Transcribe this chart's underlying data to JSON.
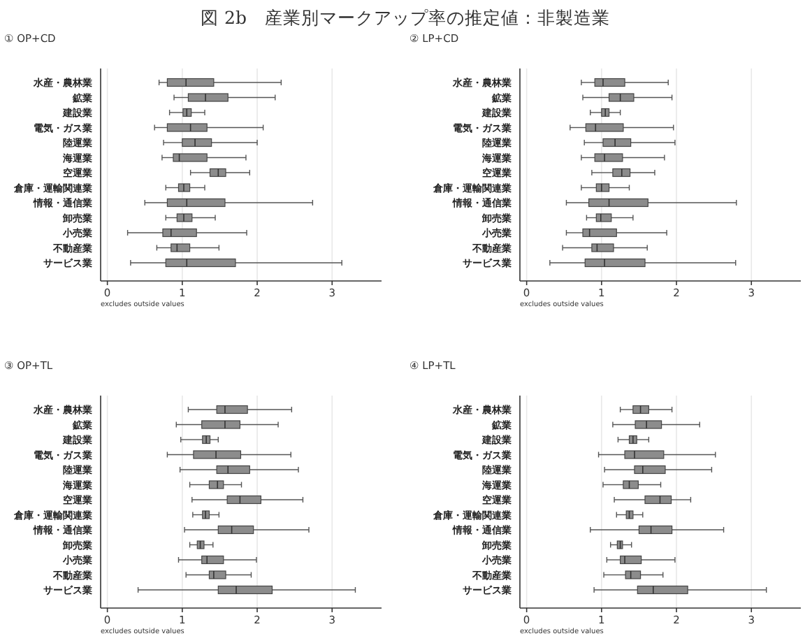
{
  "chart_data": [
    {
      "type": "box",
      "orientation": "horizontal",
      "title": "図 2b　産業別マークアップ率の推定値：非製造業",
      "subtitle": "① OP+CD",
      "categories": [
        "水産・農林業",
        "鉱業",
        "建設業",
        "電気・ガス業",
        "陸運業",
        "海運業",
        "空運業",
        "倉庫・運輸関連業",
        "情報・通信業",
        "卸売業",
        "小売業",
        "不動産業",
        "サービス業"
      ],
      "xlim": [
        -0.09,
        3.66
      ],
      "xticks": [
        0,
        1,
        2,
        3
      ],
      "grid": "x",
      "annotations": [
        "excludes outside values"
      ],
      "series": [
        {
          "color": "#8c8c8c",
          "boxes": [
            {
              "low": 0.69,
              "q1": 0.8,
              "median": 1.05,
              "q3": 1.42,
              "high": 2.32
            },
            {
              "low": 0.89,
              "q1": 1.08,
              "median": 1.31,
              "q3": 1.61,
              "high": 2.24
            },
            {
              "low": 0.83,
              "q1": 1.01,
              "median": 1.06,
              "q3": 1.12,
              "high": 1.3
            },
            {
              "low": 0.63,
              "q1": 0.8,
              "median": 1.11,
              "q3": 1.33,
              "high": 2.08
            },
            {
              "low": 0.75,
              "q1": 1.0,
              "median": 1.17,
              "q3": 1.39,
              "high": 2.0
            },
            {
              "low": 0.73,
              "q1": 0.88,
              "median": 0.96,
              "q3": 1.33,
              "high": 1.85
            },
            {
              "low": 1.11,
              "q1": 1.37,
              "median": 1.48,
              "q3": 1.58,
              "high": 1.9
            },
            {
              "low": 0.78,
              "q1": 0.95,
              "median": 1.02,
              "q3": 1.1,
              "high": 1.3
            },
            {
              "low": 0.5,
              "q1": 0.8,
              "median": 1.06,
              "q3": 1.57,
              "high": 2.74
            },
            {
              "low": 0.78,
              "q1": 0.93,
              "median": 1.02,
              "q3": 1.13,
              "high": 1.44
            },
            {
              "low": 0.27,
              "q1": 0.74,
              "median": 0.85,
              "q3": 1.19,
              "high": 1.86
            },
            {
              "low": 0.66,
              "q1": 0.85,
              "median": 0.93,
              "q3": 1.1,
              "high": 1.49
            },
            {
              "low": 0.31,
              "q1": 0.78,
              "median": 1.06,
              "q3": 1.71,
              "high": 3.13
            }
          ]
        }
      ]
    },
    {
      "type": "box",
      "orientation": "horizontal",
      "subtitle": "② LP+CD",
      "categories": [
        "水産・農林業",
        "鉱業",
        "建設業",
        "電気・ガス業",
        "陸運業",
        "海運業",
        "空運業",
        "倉庫・運輸関連業",
        "情報・通信業",
        "卸売業",
        "小売業",
        "不動産業",
        "サービス業"
      ],
      "xlim": [
        -0.09,
        3.66
      ],
      "xticks": [
        0,
        1,
        2,
        3
      ],
      "grid": "x",
      "annotations": [
        "excludes outside values"
      ],
      "series": [
        {
          "color": "#8c8c8c",
          "boxes": [
            {
              "low": 0.73,
              "q1": 0.91,
              "median": 1.02,
              "q3": 1.31,
              "high": 1.89
            },
            {
              "low": 0.75,
              "q1": 1.1,
              "median": 1.25,
              "q3": 1.43,
              "high": 1.94
            },
            {
              "low": 0.85,
              "q1": 1.0,
              "median": 1.05,
              "q3": 1.1,
              "high": 1.25
            },
            {
              "low": 0.58,
              "q1": 0.79,
              "median": 0.92,
              "q3": 1.29,
              "high": 1.96
            },
            {
              "low": 0.77,
              "q1": 1.02,
              "median": 1.18,
              "q3": 1.39,
              "high": 1.98
            },
            {
              "low": 0.73,
              "q1": 0.91,
              "median": 1.04,
              "q3": 1.28,
              "high": 1.84
            },
            {
              "low": 0.87,
              "q1": 1.15,
              "median": 1.27,
              "q3": 1.38,
              "high": 1.71
            },
            {
              "low": 0.73,
              "q1": 0.93,
              "median": 1.0,
              "q3": 1.1,
              "high": 1.37
            },
            {
              "low": 0.53,
              "q1": 0.83,
              "median": 1.1,
              "q3": 1.62,
              "high": 2.8
            },
            {
              "low": 0.8,
              "q1": 0.93,
              "median": 0.99,
              "q3": 1.13,
              "high": 1.42
            },
            {
              "low": 0.53,
              "q1": 0.75,
              "median": 0.84,
              "q3": 1.2,
              "high": 1.87
            },
            {
              "low": 0.48,
              "q1": 0.87,
              "median": 0.94,
              "q3": 1.16,
              "high": 1.61
            },
            {
              "low": 0.31,
              "q1": 0.78,
              "median": 1.04,
              "q3": 1.58,
              "high": 2.79
            }
          ]
        }
      ]
    },
    {
      "type": "box",
      "orientation": "horizontal",
      "subtitle": "③ OP+TL",
      "categories": [
        "水産・農林業",
        "鉱業",
        "建設業",
        "電気・ガス業",
        "陸運業",
        "海運業",
        "空運業",
        "倉庫・運輸関連業",
        "情報・通信業",
        "卸売業",
        "小売業",
        "不動産業",
        "サービス業"
      ],
      "xlim": [
        -0.09,
        3.66
      ],
      "xticks": [
        0,
        1,
        2,
        3
      ],
      "grid": "x",
      "annotations": [
        "excludes outside values"
      ],
      "series": [
        {
          "color": "#8c8c8c",
          "boxes": [
            {
              "low": 1.08,
              "q1": 1.46,
              "median": 1.57,
              "q3": 1.87,
              "high": 2.46
            },
            {
              "low": 0.92,
              "q1": 1.26,
              "median": 1.57,
              "q3": 1.77,
              "high": 2.28
            },
            {
              "low": 0.98,
              "q1": 1.27,
              "median": 1.32,
              "q3": 1.37,
              "high": 1.48
            },
            {
              "low": 0.8,
              "q1": 1.15,
              "median": 1.45,
              "q3": 1.78,
              "high": 2.45
            },
            {
              "low": 0.97,
              "q1": 1.46,
              "median": 1.61,
              "q3": 1.9,
              "high": 2.55
            },
            {
              "low": 1.1,
              "q1": 1.36,
              "median": 1.47,
              "q3": 1.55,
              "high": 1.79
            },
            {
              "low": 1.13,
              "q1": 1.6,
              "median": 1.77,
              "q3": 2.05,
              "high": 2.61
            },
            {
              "low": 1.14,
              "q1": 1.27,
              "median": 1.31,
              "q3": 1.36,
              "high": 1.49
            },
            {
              "low": 1.03,
              "q1": 1.48,
              "median": 1.66,
              "q3": 1.95,
              "high": 2.69
            },
            {
              "low": 1.1,
              "q1": 1.2,
              "median": 1.24,
              "q3": 1.29,
              "high": 1.41
            },
            {
              "low": 0.95,
              "q1": 1.26,
              "median": 1.33,
              "q3": 1.55,
              "high": 1.99
            },
            {
              "low": 1.05,
              "q1": 1.36,
              "median": 1.42,
              "q3": 1.58,
              "high": 1.92
            },
            {
              "low": 0.41,
              "q1": 1.48,
              "median": 1.72,
              "q3": 2.2,
              "high": 3.31
            }
          ]
        }
      ]
    },
    {
      "type": "box",
      "orientation": "horizontal",
      "subtitle": "④ LP+TL",
      "categories": [
        "水産・農林業",
        "鉱業",
        "建設業",
        "電気・ガス業",
        "陸運業",
        "海運業",
        "空運業",
        "倉庫・運輸関連業",
        "情報・通信業",
        "卸売業",
        "小売業",
        "不動産業",
        "サービス業"
      ],
      "xlim": [
        -0.09,
        3.66
      ],
      "xticks": [
        0,
        1,
        2,
        3
      ],
      "grid": "x",
      "annotations": [
        "excludes outside values"
      ],
      "series": [
        {
          "color": "#8c8c8c",
          "boxes": [
            {
              "low": 1.25,
              "q1": 1.42,
              "median": 1.52,
              "q3": 1.63,
              "high": 1.94
            },
            {
              "low": 1.15,
              "q1": 1.45,
              "median": 1.6,
              "q3": 1.8,
              "high": 2.31
            },
            {
              "low": 1.22,
              "q1": 1.37,
              "median": 1.42,
              "q3": 1.47,
              "high": 1.63
            },
            {
              "low": 0.96,
              "q1": 1.31,
              "median": 1.44,
              "q3": 1.83,
              "high": 2.52
            },
            {
              "low": 1.04,
              "q1": 1.44,
              "median": 1.55,
              "q3": 1.85,
              "high": 2.47
            },
            {
              "low": 1.02,
              "q1": 1.29,
              "median": 1.37,
              "q3": 1.49,
              "high": 1.79
            },
            {
              "low": 1.17,
              "q1": 1.58,
              "median": 1.78,
              "q3": 1.93,
              "high": 2.19
            },
            {
              "low": 1.2,
              "q1": 1.33,
              "median": 1.37,
              "q3": 1.42,
              "high": 1.55
            },
            {
              "low": 0.85,
              "q1": 1.5,
              "median": 1.66,
              "q3": 1.94,
              "high": 2.63
            },
            {
              "low": 1.12,
              "q1": 1.21,
              "median": 1.25,
              "q3": 1.28,
              "high": 1.4
            },
            {
              "low": 1.07,
              "q1": 1.25,
              "median": 1.31,
              "q3": 1.53,
              "high": 1.98
            },
            {
              "low": 1.03,
              "q1": 1.32,
              "median": 1.39,
              "q3": 1.52,
              "high": 1.82
            },
            {
              "low": 0.9,
              "q1": 1.48,
              "median": 1.69,
              "q3": 2.15,
              "high": 3.2
            }
          ]
        }
      ]
    }
  ]
}
